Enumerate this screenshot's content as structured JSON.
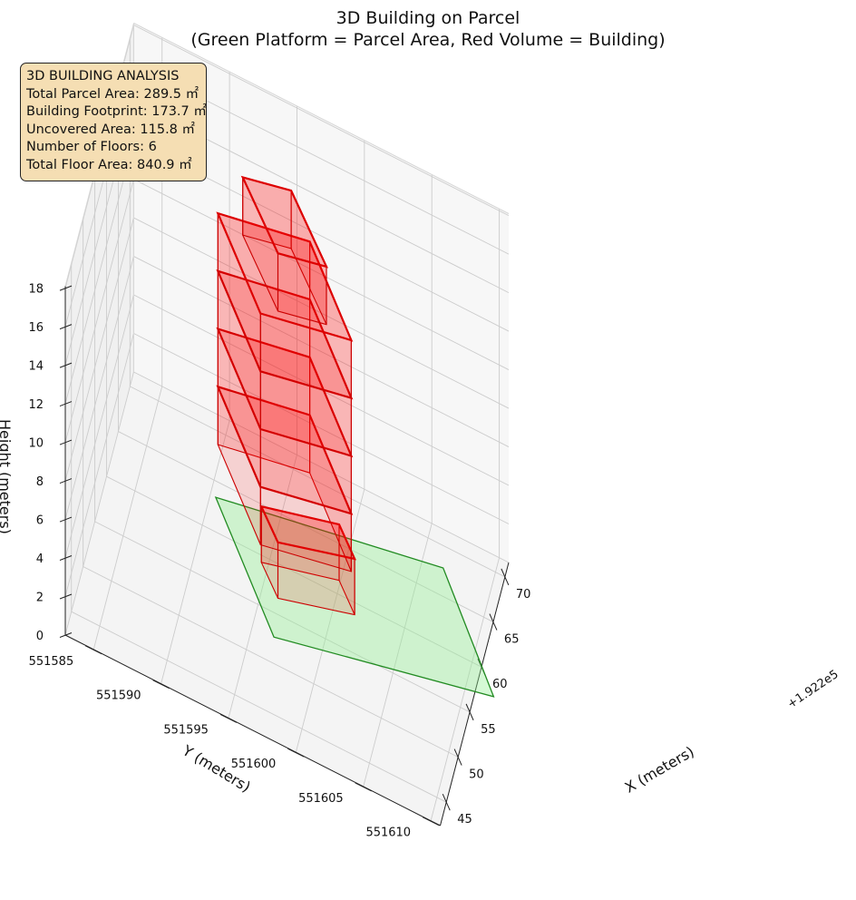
{
  "chart_data": {
    "type": "3d-polygons",
    "title_line1": "3D Building on Parcel",
    "title_line2": "(Green Platform = Parcel Area, Red Volume = Building)",
    "xlabel": "X (meters)",
    "ylabel": "Y (meters)",
    "zlabel": "Height (meters)",
    "x_offset_label": "+1.922e5",
    "x_ticks": [
      "45",
      "50",
      "55",
      "60",
      "65",
      "70"
    ],
    "y_ticks": [
      "551585",
      "551590",
      "551595",
      "551600",
      "551605",
      "551610"
    ],
    "z_ticks": [
      "0",
      "2",
      "4",
      "6",
      "8",
      "10",
      "12",
      "14",
      "16",
      "18"
    ],
    "colors": {
      "parcel_fill": "#90ee90",
      "parcel_edge": "#228b22",
      "building_fill": "#ff0000",
      "building_edge": "#cc0000",
      "pane": "#f2f2f2",
      "grid": "#cccccc"
    }
  },
  "analysis": {
    "heading": "3D BUILDING ANALYSIS",
    "parcel_area": "Total Parcel Area: 289.5 ㎡",
    "footprint": "Building Footprint: 173.7 ㎡",
    "uncovered": "Uncovered Area: 115.8 ㎡",
    "floors": "Number of Floors: 6",
    "floor_area": "Total Floor Area: 840.9 ㎡"
  }
}
